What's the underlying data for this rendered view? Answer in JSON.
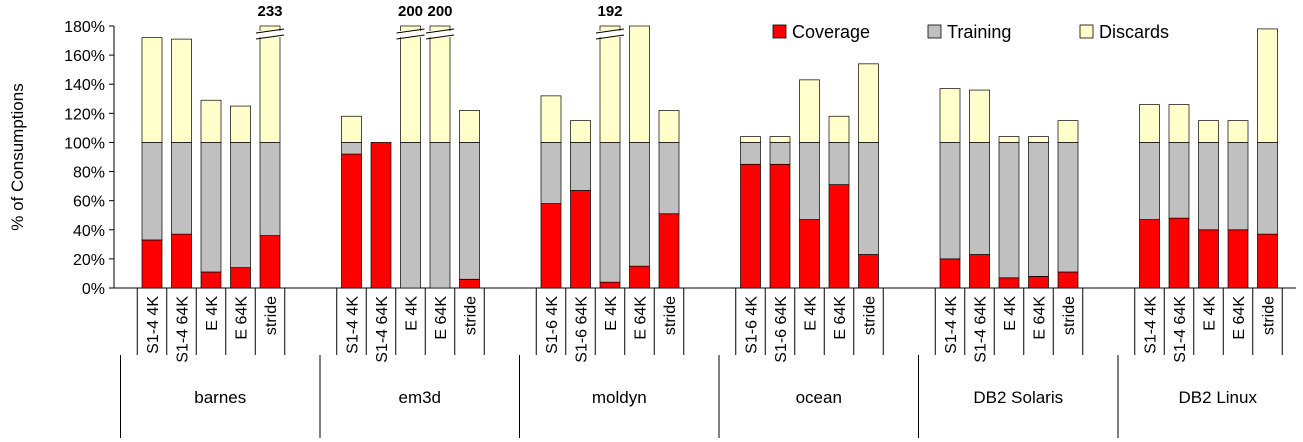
{
  "chart_data": {
    "type": "bar",
    "stacked": true,
    "title": "",
    "ylabel": "% of Consumptions",
    "ylim": [
      0,
      180
    ],
    "yticks": [
      "0%",
      "20%",
      "40%",
      "60%",
      "80%",
      "100%",
      "120%",
      "140%",
      "160%",
      "180%"
    ],
    "grid": false,
    "legend_position": "top-right",
    "series": [
      {
        "name": "Coverage",
        "color": "#ff0000"
      },
      {
        "name": "Training",
        "color": "#c0c0c0"
      },
      {
        "name": "Discards",
        "color": "#ffffcc"
      }
    ],
    "groups": [
      {
        "name": "barnes",
        "bars": [
          {
            "label": "S1-4 4K",
            "coverage": 33,
            "training": 67,
            "discards": 72
          },
          {
            "label": "S1-4 64K",
            "coverage": 37,
            "training": 63,
            "discards": 71
          },
          {
            "label": "E 4K",
            "coverage": 11,
            "training": 89,
            "discards": 29
          },
          {
            "label": "E 64K",
            "coverage": 14,
            "training": 86,
            "discards": 25
          },
          {
            "label": "stride",
            "coverage": 36,
            "training": 64,
            "discards": 133,
            "overflow_label": "233"
          }
        ]
      },
      {
        "name": "em3d",
        "bars": [
          {
            "label": "S1-4 4K",
            "coverage": 92,
            "training": 8,
            "discards": 18
          },
          {
            "label": "S1-4 64K",
            "coverage": 100,
            "training": 0,
            "discards": 0
          },
          {
            "label": "E 4K",
            "coverage": 0,
            "training": 100,
            "discards": 100,
            "overflow_label": "200"
          },
          {
            "label": "E 64K",
            "coverage": 0,
            "training": 100,
            "discards": 100,
            "overflow_label": "200"
          },
          {
            "label": "stride",
            "coverage": 6,
            "training": 94,
            "discards": 22
          }
        ]
      },
      {
        "name": "moldyn",
        "bars": [
          {
            "label": "S1-6 4K",
            "coverage": 58,
            "training": 42,
            "discards": 32
          },
          {
            "label": "S1-6 64K",
            "coverage": 67,
            "training": 33,
            "discards": 15
          },
          {
            "label": "E 4K",
            "coverage": 4,
            "training": 96,
            "discards": 92,
            "overflow_label": "192"
          },
          {
            "label": "E 64K",
            "coverage": 15,
            "training": 85,
            "discards": 82
          },
          {
            "label": "stride",
            "coverage": 51,
            "training": 49,
            "discards": 22
          }
        ]
      },
      {
        "name": "ocean",
        "bars": [
          {
            "label": "S1-6 4K",
            "coverage": 85,
            "training": 15,
            "discards": 4
          },
          {
            "label": "S1-6 64K",
            "coverage": 85,
            "training": 15,
            "discards": 4
          },
          {
            "label": "E 4K",
            "coverage": 47,
            "training": 53,
            "discards": 43
          },
          {
            "label": "E 64K",
            "coverage": 71,
            "training": 29,
            "discards": 18
          },
          {
            "label": "stride",
            "coverage": 23,
            "training": 77,
            "discards": 54
          }
        ]
      },
      {
        "name": "DB2 Solaris",
        "bars": [
          {
            "label": "S1-4 4K",
            "coverage": 20,
            "training": 80,
            "discards": 37
          },
          {
            "label": "S1-4 64K",
            "coverage": 23,
            "training": 77,
            "discards": 36
          },
          {
            "label": "E 4K",
            "coverage": 7,
            "training": 93,
            "discards": 4
          },
          {
            "label": "E 64K",
            "coverage": 8,
            "training": 92,
            "discards": 4
          },
          {
            "label": "stride",
            "coverage": 11,
            "training": 89,
            "discards": 15
          }
        ]
      },
      {
        "name": "DB2 Linux",
        "bars": [
          {
            "label": "S1-4 4K",
            "coverage": 47,
            "training": 53,
            "discards": 26
          },
          {
            "label": "S1-4 64K",
            "coverage": 48,
            "training": 52,
            "discards": 26
          },
          {
            "label": "E 4K",
            "coverage": 40,
            "training": 60,
            "discards": 15
          },
          {
            "label": "E 64K",
            "coverage": 40,
            "training": 60,
            "discards": 15
          },
          {
            "label": "stride",
            "coverage": 37,
            "training": 63,
            "discards": 78
          }
        ]
      }
    ]
  }
}
